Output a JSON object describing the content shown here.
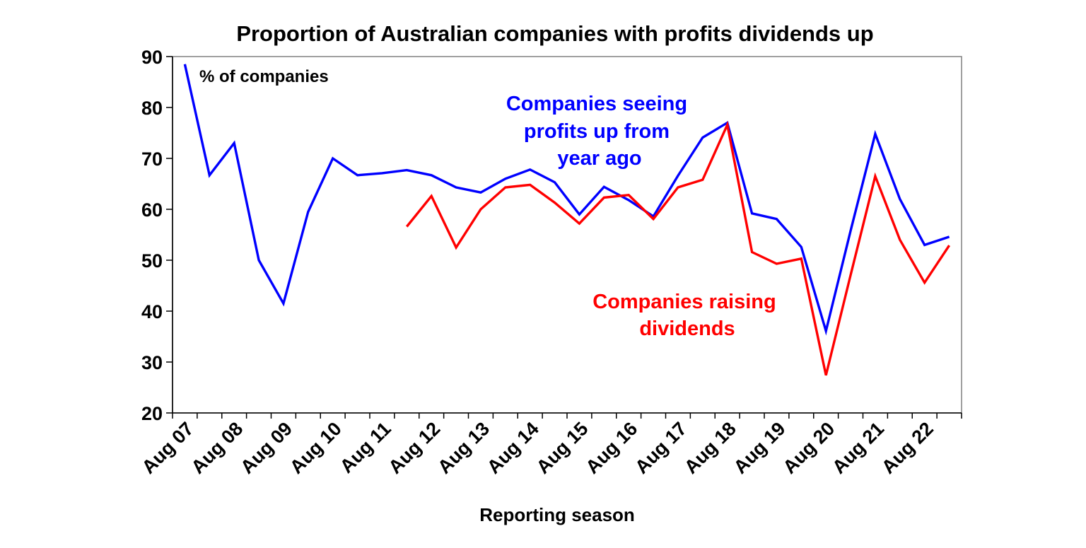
{
  "chart_data": {
    "type": "line",
    "title": "Proportion of Australian companies with profits dividends up",
    "xlabel": "Reporting season",
    "ylabel": "% of companies",
    "ylim": [
      20,
      90
    ],
    "yticks": [
      20,
      30,
      40,
      50,
      60,
      70,
      80,
      90
    ],
    "x": [
      "Aug 07",
      "Feb 08",
      "Aug 08",
      "Feb 09",
      "Aug 09",
      "Feb 10",
      "Aug 10",
      "Feb 11",
      "Aug 11",
      "Feb 12",
      "Aug 12",
      "Feb 13",
      "Aug 13",
      "Feb 14",
      "Aug 14",
      "Feb 15",
      "Aug 15",
      "Feb 16",
      "Aug 16",
      "Feb 17",
      "Aug 17",
      "Feb 18",
      "Aug 18",
      "Feb 19",
      "Aug 19",
      "Feb 20",
      "Aug 20",
      "Feb 21",
      "Aug 21",
      "Feb 22",
      "Aug 22",
      "Feb 23"
    ],
    "xtick_labels": [
      "Aug 07",
      "Aug 08",
      "Aug 09",
      "Aug 10",
      "Aug 11",
      "Aug 12",
      "Aug 13",
      "Aug 14",
      "Aug 15",
      "Aug 16",
      "Aug 17",
      "Aug 18",
      "Aug 19",
      "Aug 20",
      "Aug 21",
      "Aug 22"
    ],
    "grid": false,
    "legend": "none",
    "annotations": {
      "profits": [
        "Companies seeing",
        "profits up from",
        "year ago"
      ],
      "dividends": [
        "Companies raising",
        "dividends"
      ]
    },
    "series": [
      {
        "color": "#0000ff",
        "values": [
          88.5,
          66.7,
          73.0,
          50.0,
          41.5,
          59.5,
          70.0,
          66.7,
          67.1,
          67.7,
          66.7,
          64.3,
          63.3,
          66.0,
          67.8,
          65.3,
          59.0,
          64.4,
          61.8,
          58.6,
          66.6,
          74.1,
          77.0,
          59.2,
          58.1,
          52.6,
          36.1,
          55.8,
          74.8,
          62.0,
          53.0,
          54.6
        ]
      },
      {
        "color": "#ff0000",
        "values": [
          null,
          null,
          null,
          null,
          null,
          null,
          null,
          null,
          null,
          56.6,
          62.6,
          52.5,
          60.0,
          64.3,
          64.8,
          61.3,
          57.2,
          62.3,
          62.8,
          58.1,
          64.3,
          65.8,
          76.6,
          51.6,
          49.3,
          50.3,
          27.4,
          47.1,
          66.5,
          54.0,
          45.6,
          52.9
        ]
      }
    ]
  }
}
